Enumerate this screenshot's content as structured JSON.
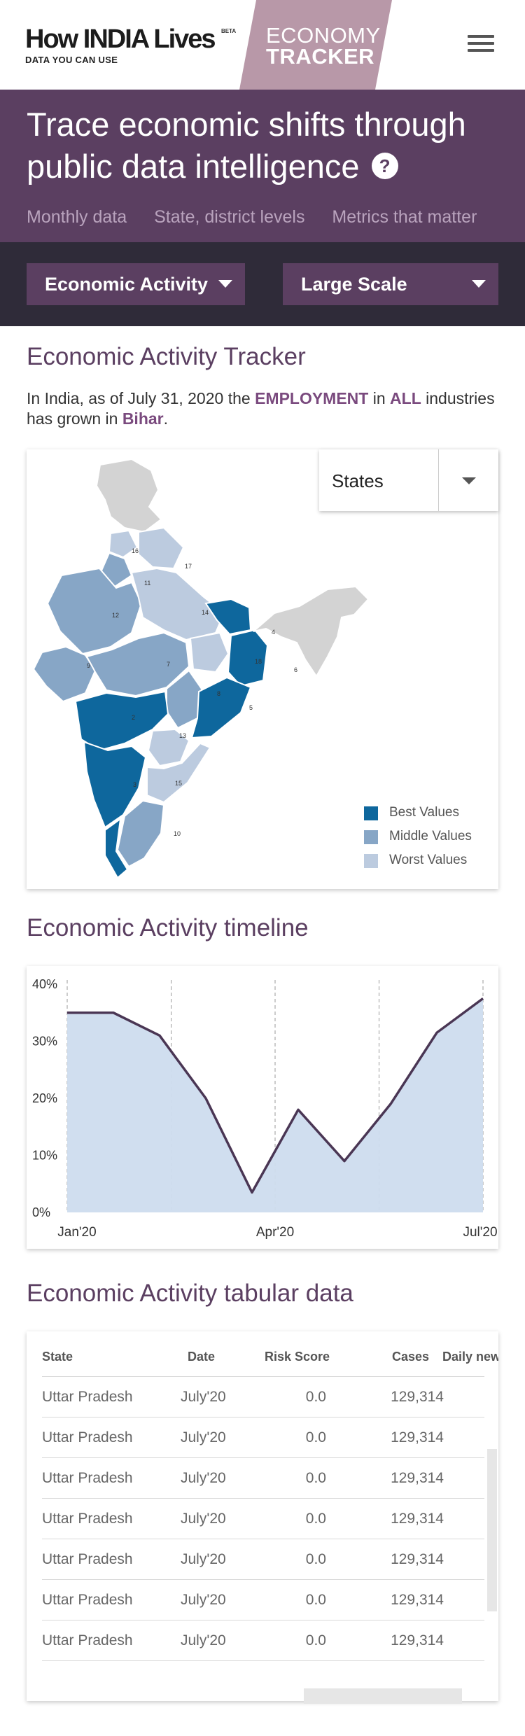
{
  "header": {
    "logo_main": "How INDIA Lives",
    "logo_beta": "BETA",
    "logo_tagline": "DATA YOU CAN USE",
    "tracker_line1": "ECONOMY",
    "tracker_line2": "TRACKER",
    "menu_icon": "hamburger-icon"
  },
  "hero": {
    "title": "Trace economic shifts through public data intelligence",
    "help": "?",
    "tags": [
      "Monthly data",
      "State, district levels",
      "Metrics that matter"
    ]
  },
  "filters": {
    "category": "Economic Activity",
    "scale": "Large Scale"
  },
  "tracker": {
    "title": "Economic Activity Tracker",
    "summary_prefix": "In India, as of July 31, 2020 the ",
    "summary_metric": "EMPLOYMENT",
    "summary_mid1": " in ",
    "summary_scope": "ALL",
    "summary_mid2": " industries has grown in ",
    "summary_region": "Bihar",
    "summary_suffix": ".",
    "region_select": "States",
    "legend": [
      {
        "label": "Best Values",
        "color": "#0e679d"
      },
      {
        "label": "Middle Values",
        "color": "#87a6c6"
      },
      {
        "label": "Worst Values",
        "color": "#bccbdf"
      }
    ],
    "state_labels": [
      "16",
      "17",
      "11",
      "12",
      "14",
      "18",
      "9",
      "7",
      "8",
      "4",
      "6",
      "2",
      "13",
      "3",
      "15",
      "10",
      "5"
    ]
  },
  "timeline": {
    "title": "Economic Activity timeline",
    "chart_data": {
      "type": "area",
      "x": [
        "Jan'20",
        "",
        "",
        "",
        "Apr'20",
        "",
        "",
        "",
        "",
        "Jul'20"
      ],
      "x_tick_labels": [
        "Jan'20",
        "Apr'20",
        "Jul'20"
      ],
      "y_tick_labels": [
        "40%",
        "30%",
        "20%",
        "10%",
        "0%"
      ],
      "series": [
        {
          "values": [
            35,
            35,
            31,
            20,
            3.5,
            18,
            9,
            19,
            31.5,
            37.5
          ]
        }
      ],
      "ylim": [
        0,
        40
      ],
      "grid": "vertical dashed",
      "line_color": "#4a3654",
      "fill_color": "#cddcee"
    }
  },
  "table": {
    "title": "Economic Activity tabular data",
    "columns": [
      "State",
      "Date",
      "Risk Score",
      "Cases",
      "Daily new cas"
    ],
    "rows": [
      [
        "Uttar Pradesh",
        "July'20",
        "0.0",
        "129,314"
      ],
      [
        "Uttar Pradesh",
        "July'20",
        "0.0",
        "129,314"
      ],
      [
        "Uttar Pradesh",
        "July'20",
        "0.0",
        "129,314"
      ],
      [
        "Uttar Pradesh",
        "July'20",
        "0.0",
        "129,314"
      ],
      [
        "Uttar Pradesh",
        "July'20",
        "0.0",
        "129,314"
      ],
      [
        "Uttar Pradesh",
        "July'20",
        "0.0",
        "129,314"
      ],
      [
        "Uttar Pradesh",
        "July'20",
        "0.0",
        "129,314"
      ]
    ]
  }
}
